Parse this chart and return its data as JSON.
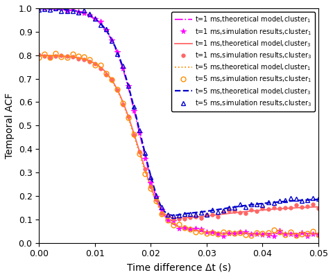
{
  "title": "",
  "xlabel": "Time difference Δt (s)",
  "ylabel": "Temporal ACF",
  "xlim": [
    0,
    0.05
  ],
  "ylim": [
    0,
    1.0
  ],
  "magenta_color": "#FF00FF",
  "red_color": "#FF6666",
  "orange_color": "#FF8C00",
  "blue_color": "#0000CC",
  "legend_fontsize": 7.0,
  "tick_labelsize": 9,
  "xlabel_fontsize": 10,
  "ylabel_fontsize": 10
}
